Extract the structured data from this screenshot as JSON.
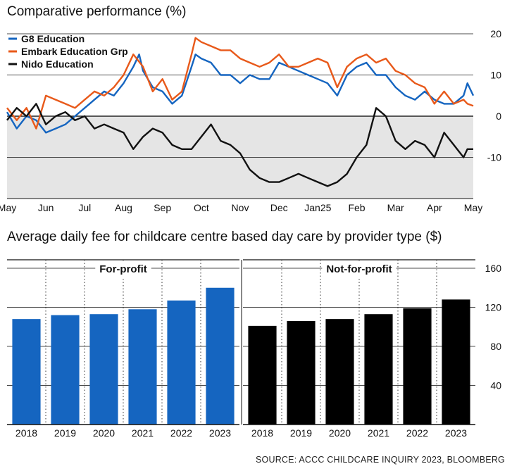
{
  "source": "SOURCE: ACCC CHILDCARE INQUIRY 2023, BLOOMBERG",
  "chart_data": [
    {
      "type": "line",
      "title": "Comparative performance (%)",
      "x_ticks": [
        "May",
        "Jun",
        "Jul",
        "Aug",
        "Sep",
        "Oct",
        "Nov",
        "Dec",
        "Jan25",
        "Feb",
        "Mar",
        "Apr",
        "May"
      ],
      "x_range": [
        0,
        12
      ],
      "ylim": [
        -20,
        20
      ],
      "y_ticks": [
        20,
        10,
        0,
        -10
      ],
      "legend_position": "top-left",
      "series": [
        {
          "name": "G8 Education",
          "color": "#1565c0",
          "points": [
            [
              0,
              1
            ],
            [
              0.25,
              -3
            ],
            [
              0.5,
              0
            ],
            [
              0.75,
              -1
            ],
            [
              1,
              -4
            ],
            [
              1.25,
              -3
            ],
            [
              1.5,
              -2
            ],
            [
              1.75,
              0
            ],
            [
              2,
              2
            ],
            [
              2.25,
              4
            ],
            [
              2.5,
              6
            ],
            [
              2.75,
              5
            ],
            [
              3,
              8
            ],
            [
              3.25,
              12
            ],
            [
              3.4,
              15
            ],
            [
              3.5,
              11
            ],
            [
              3.75,
              7
            ],
            [
              4,
              6
            ],
            [
              4.25,
              3
            ],
            [
              4.5,
              5
            ],
            [
              4.75,
              12
            ],
            [
              4.85,
              15
            ],
            [
              5,
              14
            ],
            [
              5.25,
              13
            ],
            [
              5.5,
              10
            ],
            [
              5.75,
              10
            ],
            [
              6,
              8
            ],
            [
              6.25,
              10
            ],
            [
              6.5,
              9
            ],
            [
              6.75,
              9
            ],
            [
              7,
              13
            ],
            [
              7.25,
              12
            ],
            [
              7.5,
              11
            ],
            [
              7.75,
              10
            ],
            [
              8,
              9
            ],
            [
              8.25,
              8
            ],
            [
              8.5,
              5
            ],
            [
              8.75,
              10
            ],
            [
              9,
              12
            ],
            [
              9.25,
              13
            ],
            [
              9.5,
              10
            ],
            [
              9.75,
              10
            ],
            [
              10,
              7
            ],
            [
              10.25,
              5
            ],
            [
              10.5,
              4
            ],
            [
              10.75,
              6
            ],
            [
              11,
              4
            ],
            [
              11.25,
              3
            ],
            [
              11.5,
              3
            ],
            [
              11.75,
              5
            ],
            [
              11.85,
              8
            ],
            [
              12,
              5
            ]
          ]
        },
        {
          "name": "Embark Education Grp",
          "color": "#e8591a",
          "points": [
            [
              0,
              2
            ],
            [
              0.25,
              -1
            ],
            [
              0.5,
              2
            ],
            [
              0.75,
              -3
            ],
            [
              1,
              5
            ],
            [
              1.25,
              4
            ],
            [
              1.5,
              3
            ],
            [
              1.75,
              2
            ],
            [
              2,
              4
            ],
            [
              2.25,
              6
            ],
            [
              2.5,
              5
            ],
            [
              2.75,
              7
            ],
            [
              3,
              10
            ],
            [
              3.25,
              15
            ],
            [
              3.5,
              12
            ],
            [
              3.75,
              6
            ],
            [
              4,
              9
            ],
            [
              4.25,
              4
            ],
            [
              4.5,
              6
            ],
            [
              4.75,
              15
            ],
            [
              4.85,
              19
            ],
            [
              5,
              18
            ],
            [
              5.25,
              17
            ],
            [
              5.5,
              16
            ],
            [
              5.75,
              16
            ],
            [
              6,
              14
            ],
            [
              6.25,
              13
            ],
            [
              6.5,
              12
            ],
            [
              6.75,
              13
            ],
            [
              7,
              15
            ],
            [
              7.25,
              12
            ],
            [
              7.5,
              12
            ],
            [
              7.75,
              13
            ],
            [
              8,
              14
            ],
            [
              8.25,
              13
            ],
            [
              8.5,
              7
            ],
            [
              8.75,
              12
            ],
            [
              9,
              14
            ],
            [
              9.25,
              15
            ],
            [
              9.5,
              13
            ],
            [
              9.75,
              14
            ],
            [
              10,
              11
            ],
            [
              10.25,
              10
            ],
            [
              10.5,
              8
            ],
            [
              10.75,
              7
            ],
            [
              11,
              3
            ],
            [
              11.25,
              6
            ],
            [
              11.5,
              3
            ],
            [
              11.75,
              4
            ],
            [
              11.85,
              3
            ],
            [
              12,
              2.5
            ]
          ]
        },
        {
          "name": "Nido Education",
          "color": "#111111",
          "points": [
            [
              0,
              -1
            ],
            [
              0.25,
              2
            ],
            [
              0.5,
              0
            ],
            [
              0.75,
              3
            ],
            [
              1,
              -2
            ],
            [
              1.25,
              0
            ],
            [
              1.5,
              1
            ],
            [
              1.75,
              -1
            ],
            [
              2,
              0
            ],
            [
              2.25,
              -3
            ],
            [
              2.5,
              -2
            ],
            [
              2.75,
              -3
            ],
            [
              3,
              -4
            ],
            [
              3.25,
              -8
            ],
            [
              3.5,
              -5
            ],
            [
              3.75,
              -3
            ],
            [
              4,
              -4
            ],
            [
              4.25,
              -7
            ],
            [
              4.5,
              -8
            ],
            [
              4.75,
              -8
            ],
            [
              5,
              -5
            ],
            [
              5.25,
              -2
            ],
            [
              5.5,
              -6
            ],
            [
              5.75,
              -7
            ],
            [
              6,
              -9
            ],
            [
              6.25,
              -13
            ],
            [
              6.5,
              -15
            ],
            [
              6.75,
              -16
            ],
            [
              7,
              -16
            ],
            [
              7.25,
              -15
            ],
            [
              7.5,
              -14
            ],
            [
              7.75,
              -15
            ],
            [
              8,
              -16
            ],
            [
              8.25,
              -17
            ],
            [
              8.5,
              -16
            ],
            [
              8.75,
              -14
            ],
            [
              9,
              -10
            ],
            [
              9.25,
              -7
            ],
            [
              9.5,
              2
            ],
            [
              9.75,
              0
            ],
            [
              10,
              -6
            ],
            [
              10.25,
              -8
            ],
            [
              10.5,
              -6
            ],
            [
              10.75,
              -7
            ],
            [
              11,
              -10
            ],
            [
              11.25,
              -4
            ],
            [
              11.5,
              -7
            ],
            [
              11.75,
              -10
            ],
            [
              11.85,
              -8
            ],
            [
              12,
              -8
            ]
          ]
        }
      ]
    },
    {
      "type": "bar",
      "title": "Average daily fee for childcare centre based day care by provider type ($)",
      "ylim": [
        0,
        160
      ],
      "y_ticks": [
        40,
        80,
        120,
        160
      ],
      "panels": [
        {
          "name": "For-profit",
          "color": "#1565c0",
          "categories": [
            "2018",
            "2019",
            "2020",
            "2021",
            "2022",
            "2023"
          ],
          "values": [
            108,
            112,
            113,
            118,
            127,
            140
          ]
        },
        {
          "name": "Not-for-profit",
          "color": "#000000",
          "categories": [
            "2018",
            "2019",
            "2020",
            "2021",
            "2022",
            "2023"
          ],
          "values": [
            101,
            106,
            108,
            113,
            119,
            128
          ]
        }
      ]
    }
  ]
}
